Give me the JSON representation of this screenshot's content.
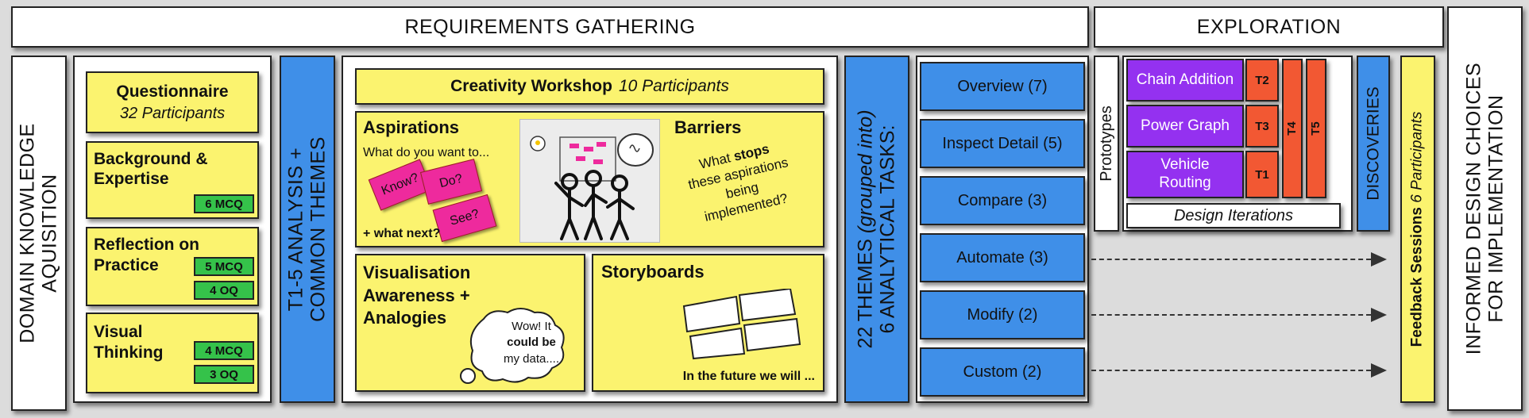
{
  "headers": {
    "requirements": "REQUIREMENTS GATHERING",
    "exploration": "EXPLORATION",
    "informed": [
      "INFORMED DESIGN CHOICES",
      "FOR IMPLEMENTATION"
    ]
  },
  "domain_knowledge": [
    "DOMAIN KNOWLEDGE",
    "AQUISITION"
  ],
  "questionnaire": {
    "title": "Questionnaire",
    "participants": "32 Participants",
    "sections": [
      {
        "title": "Background & Expertise",
        "tags": [
          "6 MCQ"
        ]
      },
      {
        "title": "Reflection on Practice",
        "tags": [
          "5 MCQ",
          "4 OQ"
        ]
      },
      {
        "title": "Visual Thinking",
        "tags": [
          "4 MCQ",
          "3 OQ"
        ]
      }
    ]
  },
  "analysis": [
    "T1-5 ANALYSIS +",
    "COMMON THEMES"
  ],
  "workshop": {
    "title": "Creativity Workshop",
    "participants": "10 Participants",
    "aspirations": {
      "title": "Aspirations",
      "question": "What do you want to...",
      "stickies": [
        "Know?",
        "Do?",
        "See?"
      ],
      "next": "+ what next?"
    },
    "barriers": {
      "title": "Barriers",
      "q_pre": "What",
      "q_bold": "stops",
      "q_post1": "these aspirations",
      "q_post2": "being",
      "q_post3": "implemented?"
    },
    "visualisation": {
      "title1": "Visualisation",
      "title2": "Awareness +",
      "title3": "Analogies",
      "bubble1": "Wow! It",
      "bubble2": "could be",
      "bubble3": "my data...."
    },
    "storyboards": {
      "title": "Storyboards",
      "caption": "In the future we will ..."
    }
  },
  "themes": {
    "pre": "22 THEMES",
    "grouped": "(grouped into)",
    "tasks": "6 ANALYTICAL TASKS:"
  },
  "tasks": [
    "Overview (7)",
    "Inspect Detail (5)",
    "Compare (3)",
    "Automate (3)",
    "Modify (2)",
    "Custom (2)"
  ],
  "prototypes": "Prototypes",
  "prototype_items": [
    {
      "label": [
        "Chain Addition"
      ],
      "task": "T2"
    },
    {
      "label": [
        "Power Graph"
      ],
      "task": "T3"
    },
    {
      "label": [
        "Vehicle",
        "Routing"
      ],
      "task": "T1"
    }
  ],
  "t4": "T4",
  "t5": "T5",
  "design_iterations": "Design Iterations",
  "discoveries": "DISCOVERIES",
  "feedback": {
    "title": "Feedback Sessions",
    "participants": "6 Participants"
  },
  "colors": {
    "yellow": "#fbf36f",
    "blue": "#3f8fe8",
    "green": "#35c24a",
    "purple": "#9431f0",
    "red": "#f25833",
    "pink": "#ee2a9d"
  }
}
